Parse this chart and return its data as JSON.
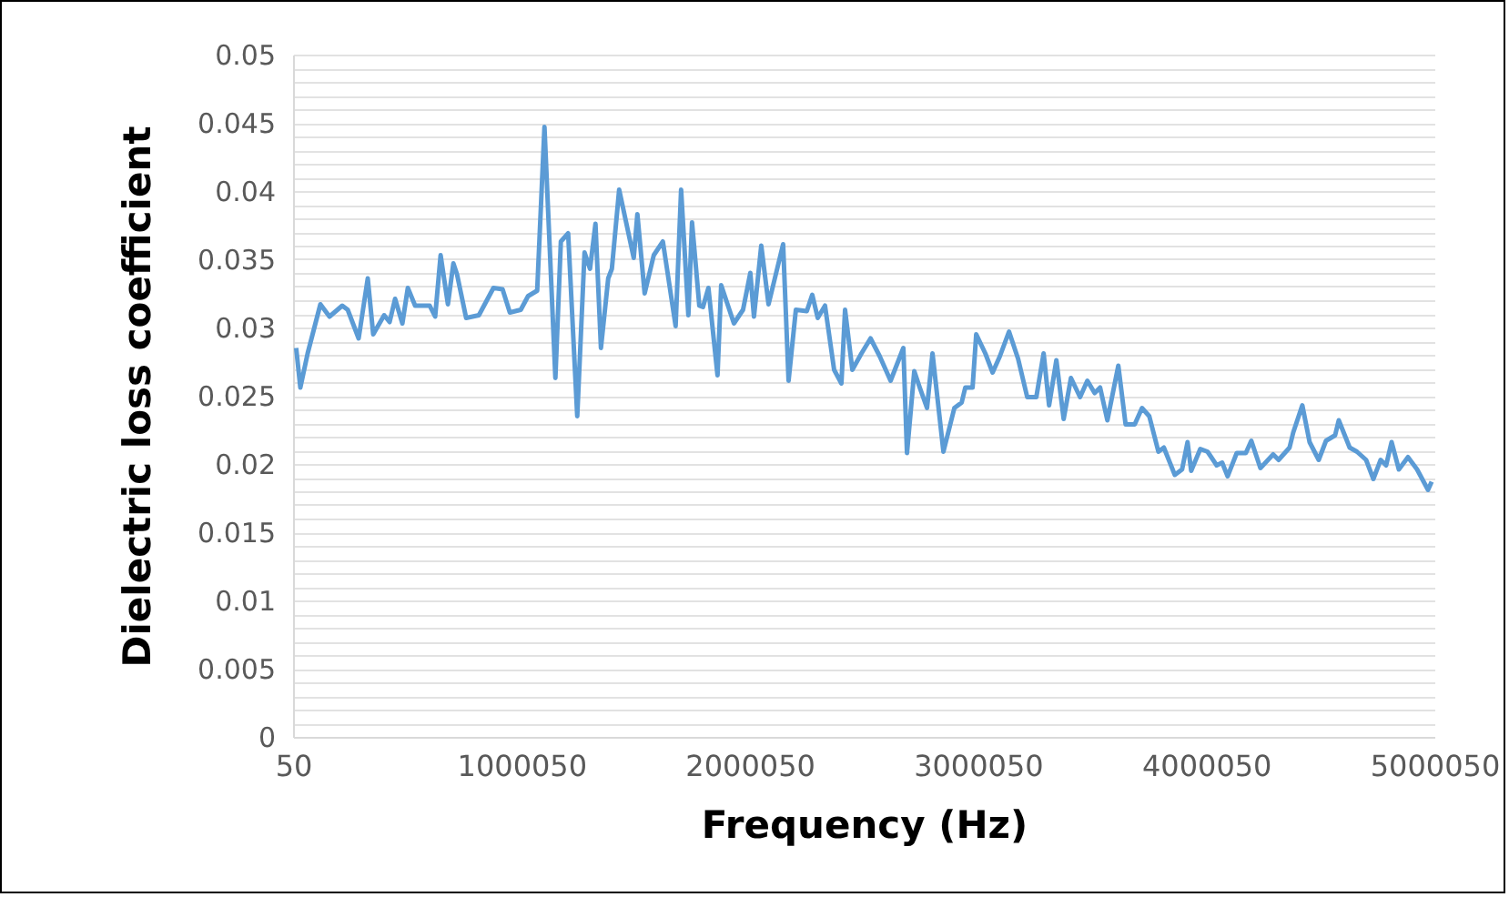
{
  "chart_data": {
    "type": "line",
    "xlabel": "Frequency (Hz)",
    "ylabel": "Dielectric loss coefficient",
    "series": [
      {
        "color": "#5b9bd5",
        "x": [
          13600,
          31970,
          63900,
          119760,
          159670,
          215540,
          239480,
          287360,
          327270,
          351210,
          399100,
          423040,
          446980,
          478900,
          502850,
          534770,
          598620,
          622560,
          646500,
          678430,
          702370,
          718330,
          758240,
          814110,
          877950,
          917860,
          949780,
          997670,
          1029590,
          1069500,
          1101420,
          1149300,
          1173250,
          1205170,
          1245080,
          1277000,
          1300940,
          1324890,
          1348830,
          1380750,
          1396710,
          1428640,
          1460560,
          1492480,
          1508450,
          1540370,
          1580280,
          1620190,
          1676050,
          1700000,
          1731900,
          1747880,
          1779800,
          1795760,
          1819700,
          1859620,
          1875580,
          1931450,
          1971350,
          2003280,
          2019240,
          2051170,
          2083090,
          2146940,
          2170880,
          2202800,
          2250690,
          2274630,
          2298570,
          2330500,
          2370400,
          2402330,
          2418290,
          2450210,
          2490120,
          2530020,
          2569930,
          2617810,
          2673680,
          2689640,
          2721560,
          2745510,
          2777430,
          2801370,
          2849260,
          2897140,
          2929070,
          2945030,
          2976960,
          2992920,
          3032820,
          3064750,
          3096670,
          3136580,
          3176480,
          3216390,
          3256290,
          3288220,
          3312160,
          3344080,
          3376010,
          3407930,
          3447840,
          3479760,
          3511690,
          3535630,
          3567550,
          3615440,
          3647360,
          3687270,
          3719190,
          3751120,
          3791020,
          3814970,
          3862850,
          3894780,
          3918720,
          3934680,
          3974590,
          4006510,
          4046420,
          4070360,
          4094300,
          4134210,
          4174110,
          4198050,
          4237960,
          4293820,
          4317770,
          4365650,
          4381610,
          4421520,
          4453440,
          4493350,
          4525270,
          4565180,
          4581140,
          4629020,
          4660950,
          4700850,
          4732780,
          4764700,
          4788650,
          4812590,
          4844510,
          4884420,
          4924320,
          4972210,
          4988170
        ],
        "values": [
          0.0285,
          0.0256,
          0.0281,
          0.0317,
          0.0308,
          0.0316,
          0.0313,
          0.0292,
          0.0336,
          0.0295,
          0.0309,
          0.0304,
          0.0321,
          0.0303,
          0.0329,
          0.0316,
          0.0316,
          0.0308,
          0.0353,
          0.0317,
          0.0347,
          0.0339,
          0.0307,
          0.0309,
          0.0329,
          0.0328,
          0.0311,
          0.0313,
          0.0323,
          0.0327,
          0.0447,
          0.0263,
          0.0363,
          0.0369,
          0.0235,
          0.0355,
          0.0343,
          0.0376,
          0.0285,
          0.0336,
          0.0343,
          0.0401,
          0.0376,
          0.0351,
          0.0383,
          0.0325,
          0.0353,
          0.0363,
          0.0301,
          0.0401,
          0.0309,
          0.0377,
          0.0316,
          0.0315,
          0.0329,
          0.0265,
          0.0331,
          0.0303,
          0.0313,
          0.034,
          0.0308,
          0.036,
          0.0317,
          0.0361,
          0.0261,
          0.0313,
          0.0312,
          0.0324,
          0.0307,
          0.0316,
          0.0269,
          0.0259,
          0.0313,
          0.0269,
          0.0281,
          0.0292,
          0.0279,
          0.0261,
          0.0285,
          0.0208,
          0.0268,
          0.0256,
          0.0241,
          0.0281,
          0.0209,
          0.0241,
          0.0245,
          0.0256,
          0.0256,
          0.0295,
          0.0281,
          0.0267,
          0.0279,
          0.0297,
          0.0277,
          0.0249,
          0.0249,
          0.0281,
          0.0243,
          0.0276,
          0.0233,
          0.0263,
          0.0249,
          0.0261,
          0.0252,
          0.0256,
          0.0232,
          0.0272,
          0.0229,
          0.0229,
          0.0241,
          0.0235,
          0.0209,
          0.0212,
          0.0192,
          0.0196,
          0.0216,
          0.0195,
          0.0211,
          0.0209,
          0.0199,
          0.0201,
          0.0191,
          0.0208,
          0.0208,
          0.0217,
          0.0197,
          0.0207,
          0.0203,
          0.0212,
          0.0223,
          0.0243,
          0.0216,
          0.0203,
          0.0217,
          0.0221,
          0.0232,
          0.0212,
          0.0209,
          0.0203,
          0.0189,
          0.0203,
          0.0199,
          0.0216,
          0.0196,
          0.0205,
          0.0196,
          0.0181,
          0.0187
        ]
      }
    ],
    "xlim": [
      50,
      5000050
    ],
    "xticks": [
      50,
      1000050,
      2000050,
      3000050,
      4000050,
      5000050
    ],
    "ylim": [
      0,
      0.05
    ],
    "yticks": [
      0,
      {
        "value": 0.001,
        "label": null
      },
      {
        "value": 0.002,
        "label": null
      },
      {
        "value": 0.003,
        "label": null
      },
      {
        "value": 0.004,
        "label": null
      },
      0.005,
      {
        "value": 0.006,
        "label": null
      },
      {
        "value": 0.007,
        "label": null
      },
      {
        "value": 0.008,
        "label": null
      },
      {
        "value": 0.009,
        "label": null
      },
      0.01,
      {
        "value": 0.011,
        "label": null
      },
      {
        "value": 0.012,
        "label": null
      },
      {
        "value": 0.013,
        "label": null
      },
      {
        "value": 0.014,
        "label": null
      },
      0.015,
      {
        "value": 0.016,
        "label": null
      },
      {
        "value": 0.017,
        "label": null
      },
      {
        "value": 0.018,
        "label": null
      },
      {
        "value": 0.019,
        "label": null
      },
      0.02,
      {
        "value": 0.021,
        "label": null
      },
      {
        "value": 0.022,
        "label": null
      },
      {
        "value": 0.023,
        "label": null
      },
      {
        "value": 0.024,
        "label": null
      },
      0.025,
      {
        "value": 0.026,
        "label": null
      },
      {
        "value": 0.027,
        "label": null
      },
      {
        "value": 0.028,
        "label": null
      },
      {
        "value": 0.029,
        "label": null
      },
      0.03,
      {
        "value": 0.031,
        "label": null
      },
      {
        "value": 0.032,
        "label": null
      },
      {
        "value": 0.033,
        "label": null
      },
      {
        "value": 0.034,
        "label": null
      },
      0.035,
      {
        "value": 0.036,
        "label": null
      },
      {
        "value": 0.037,
        "label": null
      },
      {
        "value": 0.038,
        "label": null
      },
      {
        "value": 0.039,
        "label": null
      },
      0.04,
      {
        "value": 0.041,
        "label": null
      },
      {
        "value": 0.042,
        "label": null
      },
      {
        "value": 0.043,
        "label": null
      },
      {
        "value": 0.044,
        "label": null
      },
      0.045,
      {
        "value": 0.046,
        "label": null
      },
      {
        "value": 0.047,
        "label": null
      },
      {
        "value": 0.048,
        "label": null
      },
      {
        "value": 0.049,
        "label": null
      },
      0.05
    ],
    "grid": "y"
  }
}
